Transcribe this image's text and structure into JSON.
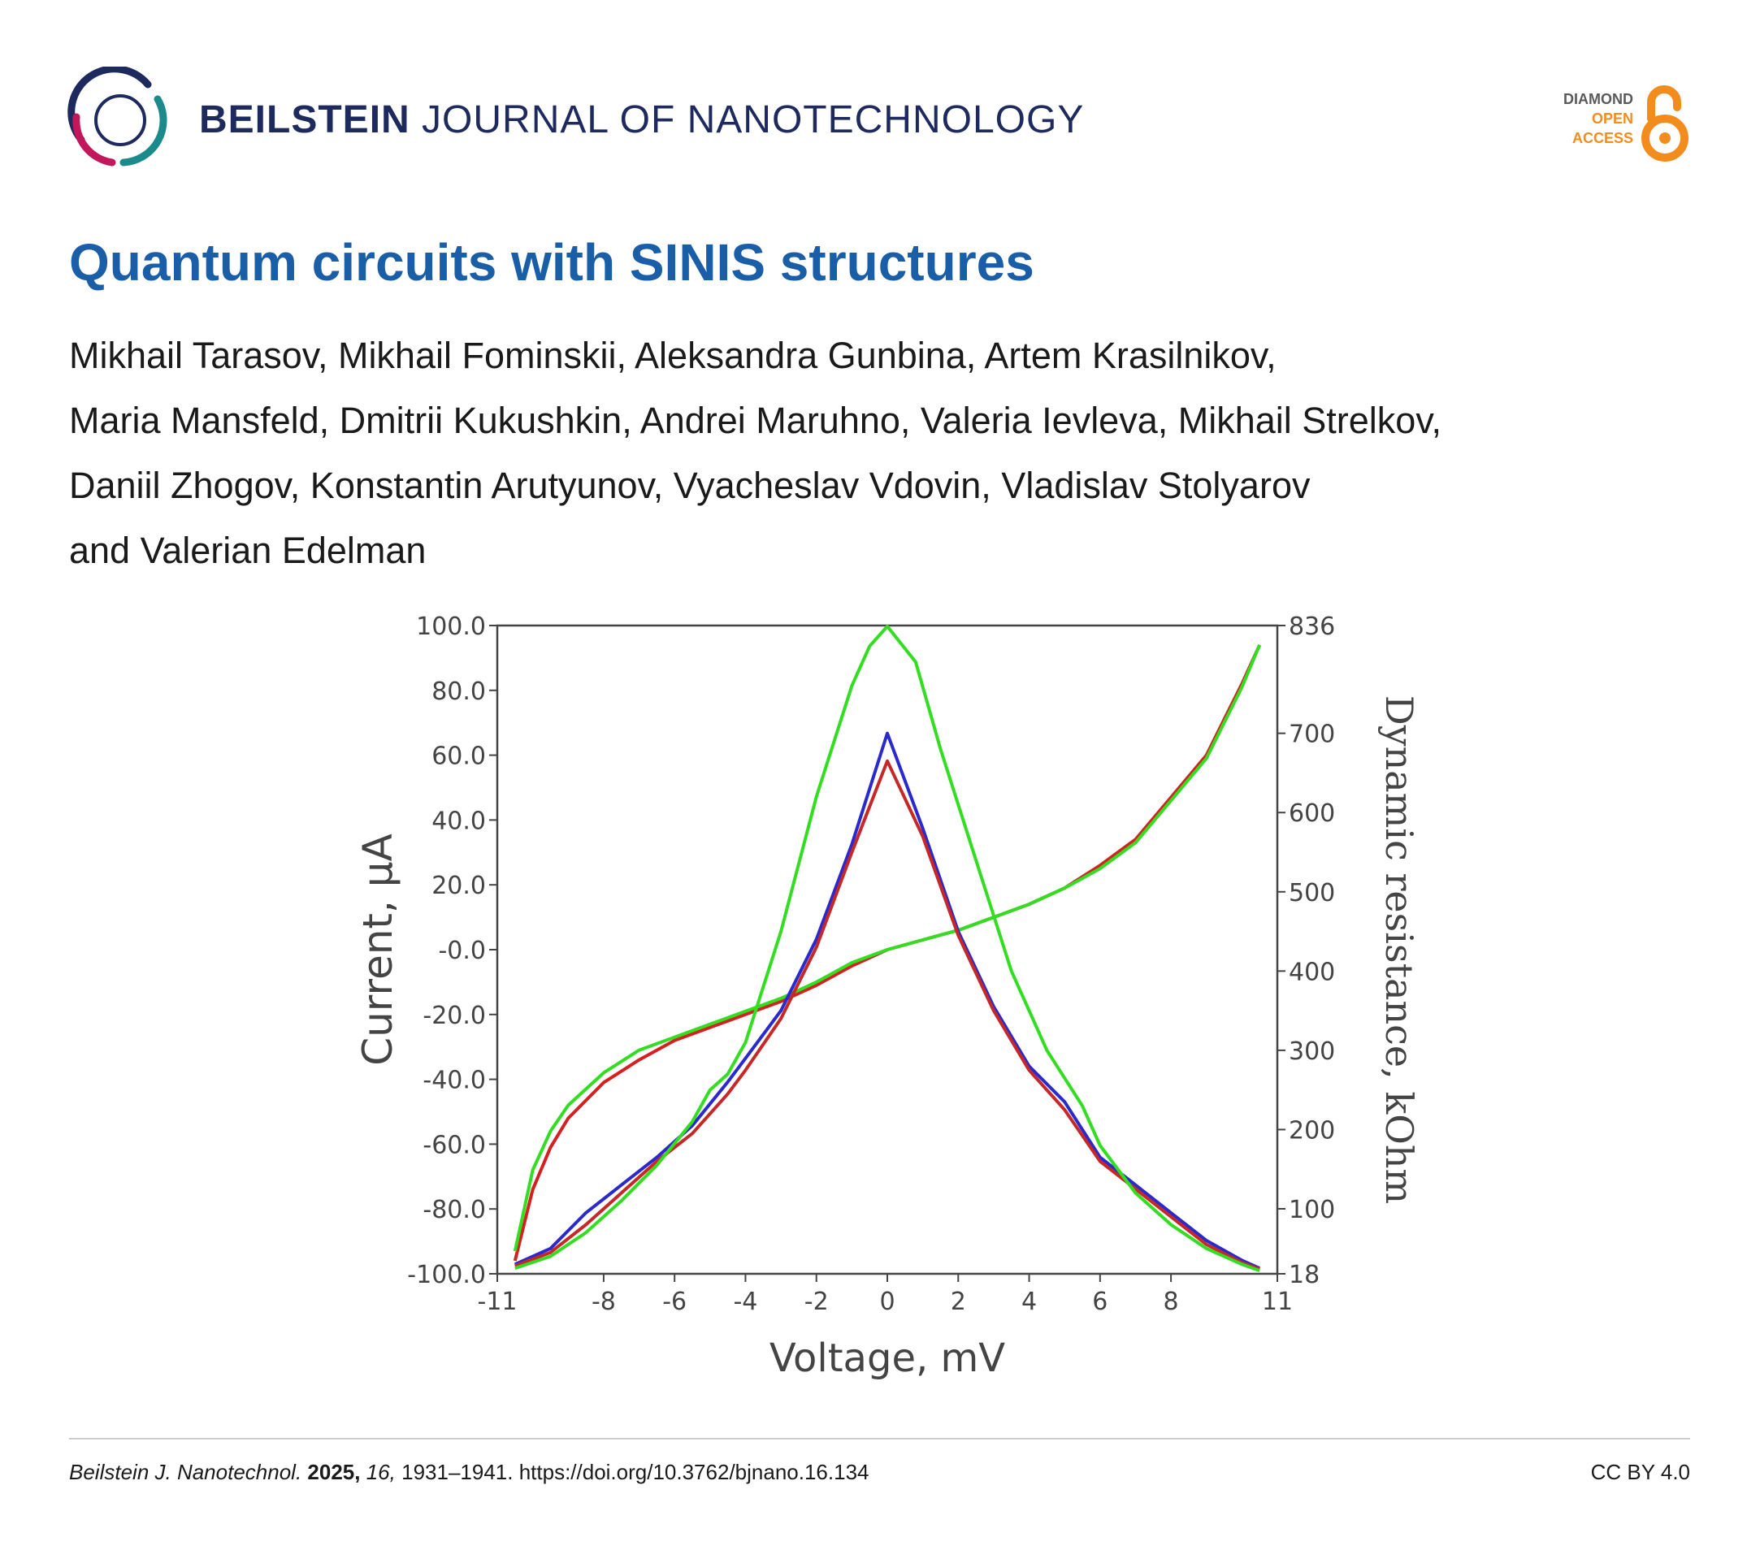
{
  "header": {
    "journal_strong": "BEILSTEIN",
    "journal_light": "JOURNAL OF NANOTECHNOLOGY",
    "badge": {
      "line1": "DIAMOND",
      "line2": "OPEN",
      "line3": "ACCESS"
    },
    "colors": {
      "navy": "#1e2a5e",
      "orange": "#f28c1c",
      "magenta": "#c2185b",
      "teal": "#1a8a8a"
    }
  },
  "article": {
    "title": "Quantum circuits with SINIS structures",
    "author_lines": [
      "Mikhail Tarasov, Mikhail Fominskii, Aleksandra Gunbina, Artem Krasilnikov,",
      "Maria Mansfeld, Dmitrii Kukushkin, Andrei Maruhno, Valeria Ievleva, Mikhail Strelkov,",
      "Daniil Zhogov, Konstantin Arutyunov, Vyacheslav Vdovin, Vladislav Stolyarov",
      "and Valerian Edelman"
    ]
  },
  "chart_data": {
    "type": "line",
    "xlabel": "Voltage, mV",
    "ylabel": "Current, µA",
    "y2label": "Dynamic resistance, kOhm",
    "xlim": [
      -11,
      11
    ],
    "ylim": [
      -100,
      100
    ],
    "y2lim": [
      18,
      836
    ],
    "xticks": [
      "-11",
      "-8",
      "-6",
      "-4",
      "-2",
      "0",
      "2",
      "4",
      "6",
      "8",
      "11"
    ],
    "yticks": [
      "100.0",
      "80.0",
      "60.0",
      "40.0",
      "20.0",
      "-0.0",
      "-20.0",
      "-40.0",
      "-60.0",
      "-80.0",
      "-100.0"
    ],
    "y2ticks": [
      "836",
      "700",
      "600",
      "500",
      "400",
      "300",
      "200",
      "100",
      "18"
    ],
    "grid": false,
    "legend": "none",
    "series": [
      {
        "color": "#d42020",
        "axis": "left",
        "x": [
          -10.5,
          -10.0,
          -9.5,
          -9.0,
          -8.0,
          -7.0,
          -6.0,
          -5.0,
          -4.0,
          -3.0,
          -2.0,
          -1.0,
          0,
          1.0,
          2.0,
          3.0,
          4.0,
          5.0,
          6.0,
          7.0,
          8.0,
          9.0,
          9.5,
          10.0,
          10.5
        ],
        "y": [
          -96,
          -74,
          -61,
          -52,
          -41,
          -34,
          -28,
          -24,
          -20,
          -16,
          -11,
          -5,
          0,
          3,
          6,
          10,
          14,
          19,
          26,
          34,
          47,
          60,
          71,
          82,
          94
        ]
      },
      {
        "color": "#33dd22",
        "axis": "left",
        "x": [
          -10.5,
          -10.0,
          -9.5,
          -9.0,
          -8.0,
          -7.0,
          -6.0,
          -5.0,
          -4.0,
          -3.0,
          -2.0,
          -1.0,
          0,
          1.0,
          2.0,
          3.0,
          4.0,
          5.0,
          6.0,
          7.0,
          8.0,
          9.0,
          9.5,
          10.0,
          10.5
        ],
        "y": [
          -93,
          -68,
          -56,
          -48,
          -38,
          -31,
          -27,
          -23,
          -19,
          -15,
          -10,
          -4,
          0,
          3,
          6,
          10,
          14,
          19,
          25,
          33,
          46,
          59,
          70,
          81,
          94
        ]
      },
      {
        "color": "#2a2acc",
        "axis": "right",
        "x": [
          -10.5,
          -9.5,
          -8.5,
          -7.5,
          -6.5,
          -5.5,
          -4.5,
          -4.0,
          -3.0,
          -2.0,
          -1.0,
          0,
          1.0,
          2.0,
          3.0,
          4.0,
          5.0,
          6.0,
          7.0,
          8.0,
          9.0,
          10.0,
          10.5
        ],
        "y": [
          30,
          50,
          95,
          130,
          165,
          205,
          260,
          290,
          350,
          440,
          560,
          700,
          580,
          450,
          355,
          280,
          235,
          165,
          130,
          95,
          60,
          35,
          25
        ]
      },
      {
        "color": "#c62828",
        "axis": "right",
        "x": [
          -10.5,
          -9.5,
          -8.5,
          -7.5,
          -6.5,
          -5.5,
          -4.5,
          -4.0,
          -3.0,
          -2.0,
          -1.0,
          0,
          1.0,
          2.0,
          3.0,
          4.0,
          5.0,
          6.0,
          7.0,
          8.0,
          9.0,
          10.0,
          10.5
        ],
        "y": [
          28,
          45,
          80,
          120,
          160,
          195,
          245,
          275,
          340,
          430,
          550,
          665,
          570,
          445,
          350,
          275,
          225,
          160,
          125,
          90,
          55,
          32,
          24
        ]
      },
      {
        "color": "#33dd22",
        "axis": "right",
        "x": [
          -10.5,
          -9.5,
          -8.5,
          -7.5,
          -6.5,
          -5.5,
          -5.0,
          -4.5,
          -4.0,
          -3.0,
          -2.0,
          -1.0,
          -0.5,
          0,
          0.8,
          1.5,
          2.5,
          3.5,
          4.5,
          5.5,
          6.0,
          7.0,
          8.0,
          9.0,
          10.0,
          10.5
        ],
        "y": [
          25,
          40,
          70,
          110,
          155,
          210,
          250,
          270,
          310,
          450,
          620,
          760,
          810,
          835,
          790,
          680,
          540,
          400,
          300,
          230,
          180,
          120,
          80,
          50,
          30,
          22
        ]
      }
    ]
  },
  "footer": {
    "journal_abbrev": "Beilstein J. Nanotechnol.",
    "year": "2025,",
    "volume": "16,",
    "pages_doi": "1931–1941. https://doi.org/10.3762/bjnano.16.134",
    "license": "CC BY 4.0"
  }
}
